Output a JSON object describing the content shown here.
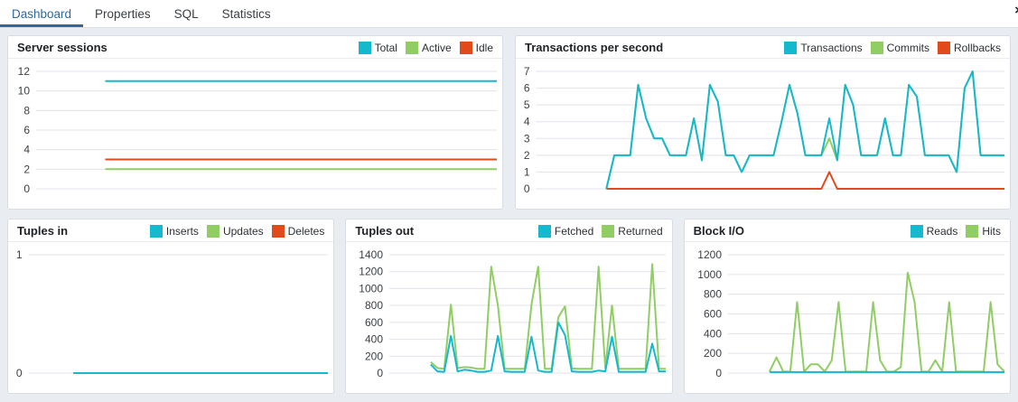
{
  "tabs": {
    "items": [
      {
        "label": "Dashboard",
        "active": true
      },
      {
        "label": "Properties",
        "active": false
      },
      {
        "label": "SQL",
        "active": false
      },
      {
        "label": "Statistics",
        "active": false
      }
    ],
    "close_label": "×"
  },
  "colors": {
    "accent_cyan": "#15b9ce",
    "accent_green": "#90ce63",
    "accent_orange": "#e2491b",
    "active_tab_blue": "#2e6a9e",
    "gridline": "#e1e3ea",
    "panel_border": "#d9dde3",
    "page_background": "#e9ecf1"
  },
  "chart_data": [
    {
      "type": "line",
      "title": "Server sessions",
      "xlabel": "",
      "ylabel": "",
      "ylim": [
        0,
        12
      ],
      "yticks": [
        0,
        2,
        4,
        6,
        8,
        10,
        12
      ],
      "grid": true,
      "legend_position": "top-right",
      "x_start_frac": 0.15,
      "series": [
        {
          "name": "Total",
          "color": "#15b9ce",
          "values": [
            11,
            11
          ]
        },
        {
          "name": "Active",
          "color": "#90ce63",
          "values": [
            2,
            2
          ]
        },
        {
          "name": "Idle",
          "color": "#e2491b",
          "values": [
            3,
            3
          ]
        }
      ]
    },
    {
      "type": "line",
      "title": "Transactions per second",
      "xlabel": "",
      "ylabel": "",
      "ylim": [
        0,
        7
      ],
      "yticks": [
        0,
        1,
        2,
        3,
        4,
        5,
        6,
        7
      ],
      "grid": true,
      "legend_position": "top-right",
      "x_start_frac": 0.15,
      "series": [
        {
          "name": "Transactions",
          "color": "#15b9ce",
          "values": [
            0,
            2,
            2,
            2,
            6.2,
            4.2,
            3,
            3,
            2,
            2,
            2,
            4.2,
            1.7,
            6.2,
            5.2,
            2,
            2,
            1,
            2,
            2,
            2,
            2,
            4,
            6.2,
            4.5,
            2,
            2,
            2,
            4.2,
            1.7,
            6.2,
            5,
            2,
            2,
            2,
            4.2,
            2,
            2,
            6.2,
            5.5,
            2,
            2,
            2,
            2,
            1,
            6,
            7,
            2,
            2,
            2,
            2
          ]
        },
        {
          "name": "Commits",
          "color": "#90ce63",
          "values": [
            0,
            2,
            2,
            2,
            6.2,
            4.2,
            3,
            3,
            2,
            2,
            2,
            4.2,
            1.7,
            6.2,
            5.2,
            2,
            2,
            1,
            2,
            2,
            2,
            2,
            4,
            6.2,
            4.5,
            2,
            2,
            2,
            3,
            1.7,
            6.2,
            5,
            2,
            2,
            2,
            4.2,
            2,
            2,
            6.2,
            5.5,
            2,
            2,
            2,
            2,
            1,
            6,
            7,
            2,
            2,
            2,
            2
          ]
        },
        {
          "name": "Rollbacks",
          "color": "#e2491b",
          "values": [
            0,
            0,
            0,
            0,
            0,
            0,
            0,
            0,
            0,
            0,
            0,
            0,
            0,
            0,
            0,
            0,
            0,
            0,
            0,
            0,
            0,
            0,
            0,
            0,
            0,
            0,
            0,
            0,
            1,
            0,
            0,
            0,
            0,
            0,
            0,
            0,
            0,
            0,
            0,
            0,
            0,
            0,
            0,
            0,
            0,
            0,
            0,
            0,
            0,
            0,
            0
          ]
        }
      ]
    },
    {
      "type": "line",
      "title": "Tuples in",
      "xlabel": "",
      "ylabel": "",
      "ylim": [
        0,
        1
      ],
      "yticks": [
        0,
        1
      ],
      "grid": true,
      "legend_position": "top-right",
      "x_start_frac": 0.15,
      "series": [
        {
          "name": "Inserts",
          "color": "#15b9ce",
          "values": [
            0,
            0
          ]
        },
        {
          "name": "Updates",
          "color": "#90ce63",
          "values": [
            0,
            0
          ]
        },
        {
          "name": "Deletes",
          "color": "#e2491b",
          "values": [
            0,
            0
          ]
        }
      ]
    },
    {
      "type": "line",
      "title": "Tuples out",
      "xlabel": "",
      "ylabel": "",
      "ylim": [
        0,
        1400
      ],
      "yticks": [
        0,
        200,
        400,
        600,
        800,
        1000,
        1200,
        1400
      ],
      "grid": true,
      "legend_position": "top-right",
      "x_start_frac": 0.15,
      "series": [
        {
          "name": "Fetched",
          "color": "#15b9ce",
          "values": [
            100,
            20,
            15,
            440,
            20,
            40,
            30,
            15,
            15,
            30,
            440,
            20,
            15,
            15,
            15,
            430,
            30,
            15,
            15,
            600,
            450,
            20,
            15,
            15,
            15,
            30,
            20,
            430,
            15,
            15,
            15,
            15,
            15,
            350,
            20,
            20
          ]
        },
        {
          "name": "Returned",
          "color": "#90ce63",
          "values": [
            130,
            60,
            50,
            810,
            60,
            70,
            65,
            50,
            50,
            1260,
            800,
            50,
            50,
            50,
            50,
            810,
            1260,
            50,
            50,
            660,
            790,
            55,
            50,
            50,
            50,
            1260,
            60,
            800,
            50,
            50,
            50,
            50,
            50,
            1290,
            50,
            50
          ]
        }
      ]
    },
    {
      "type": "line",
      "title": "Block I/O",
      "xlabel": "",
      "ylabel": "",
      "ylim": [
        0,
        1200
      ],
      "yticks": [
        0,
        200,
        400,
        600,
        800,
        1000,
        1200
      ],
      "grid": true,
      "legend_position": "top-right",
      "x_start_frac": 0.15,
      "series": [
        {
          "name": "Reads",
          "color": "#15b9ce",
          "values": [
            10,
            10,
            10,
            10,
            10,
            10,
            10,
            10,
            10,
            10,
            10,
            10,
            10,
            10,
            10,
            10,
            10,
            10,
            10,
            10,
            10,
            10,
            10,
            10,
            10,
            10,
            10,
            10,
            10,
            10,
            10,
            10,
            10,
            10,
            10
          ]
        },
        {
          "name": "Hits",
          "color": "#90ce63",
          "values": [
            15,
            160,
            15,
            15,
            720,
            15,
            90,
            90,
            15,
            130,
            720,
            15,
            15,
            15,
            15,
            720,
            130,
            15,
            15,
            60,
            1020,
            720,
            15,
            15,
            130,
            15,
            720,
            15,
            15,
            15,
            15,
            15,
            720,
            90,
            15
          ]
        }
      ]
    }
  ]
}
